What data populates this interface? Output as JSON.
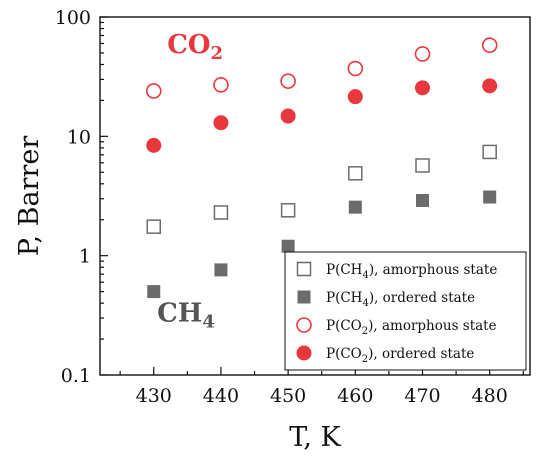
{
  "chart_data": {
    "type": "scatter",
    "title": "",
    "xlabel": "T, K",
    "ylabel": "P, Barrer",
    "xlim": [
      422,
      486
    ],
    "ylim": [
      0.1,
      100
    ],
    "yscale": "log",
    "x_ticks": [
      430,
      440,
      450,
      460,
      470,
      480
    ],
    "x_tick_labels": [
      "430",
      "440",
      "450",
      "460",
      "470",
      "480"
    ],
    "y_ticks": [
      0.1,
      1,
      10,
      100
    ],
    "y_tick_labels": [
      "0.1",
      "1",
      "10",
      "100"
    ],
    "grid": false,
    "legend_position": "bottom-right",
    "annotations": [
      {
        "text": "CO",
        "sub": "2",
        "x": 432,
        "y": 50,
        "color": "#e8383d"
      },
      {
        "text": "CH",
        "sub": "4",
        "x": 430.5,
        "y": 0.28,
        "color": "#555555"
      }
    ],
    "series": [
      {
        "name": "P(CH",
        "name_sub": "4",
        "name_rest": "), amorphous state",
        "marker": "square",
        "filled": false,
        "color": "#6b6b6b",
        "x": [
          430,
          440,
          450,
          460,
          470,
          480
        ],
        "y": [
          1.75,
          2.3,
          2.4,
          4.9,
          5.7,
          7.4
        ]
      },
      {
        "name": "P(CH",
        "name_sub": "4",
        "name_rest": "), ordered state",
        "marker": "square",
        "filled": true,
        "color": "#6b6b6b",
        "x": [
          430,
          440,
          450,
          460,
          470,
          480
        ],
        "y": [
          0.5,
          0.76,
          1.2,
          2.55,
          2.9,
          3.1
        ]
      },
      {
        "name": "P(CO",
        "name_sub": "2",
        "name_rest": "), amorphous state",
        "marker": "circle",
        "filled": false,
        "color": "#e8383d",
        "x": [
          430,
          440,
          450,
          460,
          470,
          480
        ],
        "y": [
          24,
          27,
          29,
          37,
          49,
          58
        ]
      },
      {
        "name": "P(CO",
        "name_sub": "2",
        "name_rest": "), ordered state",
        "marker": "circle",
        "filled": true,
        "color": "#e8383d",
        "x": [
          430,
          440,
          450,
          460,
          470,
          480
        ],
        "y": [
          8.4,
          13,
          14.8,
          21.5,
          25.5,
          26.5
        ]
      }
    ]
  }
}
